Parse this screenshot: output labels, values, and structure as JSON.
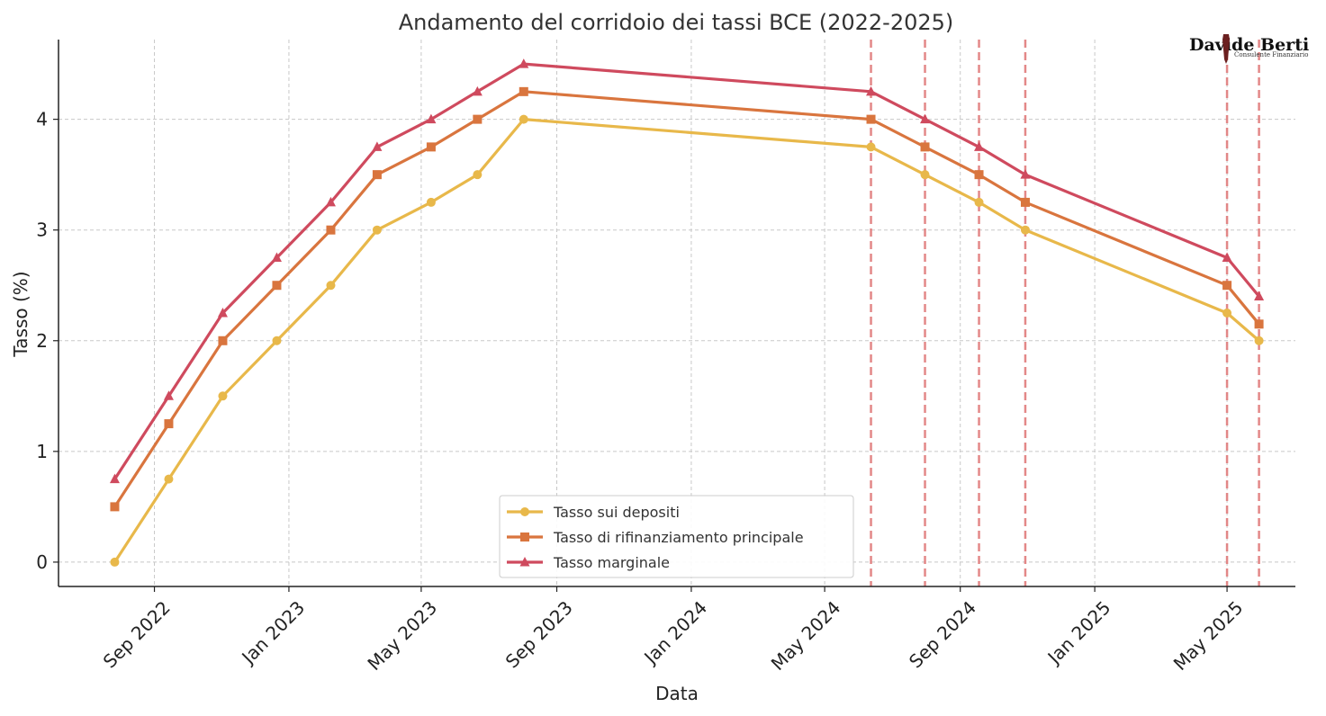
{
  "chart_data": {
    "type": "line",
    "title": "Andamento del corridoio dei tassi BCE (2022-2025)",
    "xlabel": "Data",
    "ylabel": "Tasso (%)",
    "xlim": [
      "2022-06-06",
      "2025-07-02"
    ],
    "ylim": [
      -0.22,
      4.72
    ],
    "x_ticks": [
      {
        "date": "2022-09-01",
        "label": "Sep 2022"
      },
      {
        "date": "2023-01-01",
        "label": "Jan 2023"
      },
      {
        "date": "2023-05-01",
        "label": "May 2023"
      },
      {
        "date": "2023-09-01",
        "label": "Sep 2023"
      },
      {
        "date": "2024-01-01",
        "label": "Jan 2024"
      },
      {
        "date": "2024-05-01",
        "label": "May 2024"
      },
      {
        "date": "2024-09-01",
        "label": "Sep 2024"
      },
      {
        "date": "2025-01-01",
        "label": "Jan 2025"
      },
      {
        "date": "2025-05-01",
        "label": "May 2025"
      }
    ],
    "y_ticks": [
      0,
      1,
      2,
      3,
      4
    ],
    "grid": true,
    "legend_position": "bottom-center",
    "x": [
      "2022-07-27",
      "2022-09-14",
      "2022-11-02",
      "2022-12-21",
      "2023-02-08",
      "2023-03-22",
      "2023-05-10",
      "2023-06-21",
      "2023-08-02",
      "2024-06-12",
      "2024-07-31",
      "2024-09-18",
      "2024-10-30",
      "2025-05-01",
      "2025-05-30"
    ],
    "series": [
      {
        "name": "Tasso sui depositi",
        "color": "#e8b84a",
        "marker": "circle",
        "values": [
          0,
          0.75,
          1.5,
          2,
          2.5,
          3,
          3.25,
          3.5,
          4,
          3.75,
          3.5,
          3.25,
          3,
          2.25,
          2
        ]
      },
      {
        "name": "Tasso di rifinanziamento principale",
        "color": "#d9753e",
        "marker": "square",
        "values": [
          0.5,
          1.25,
          2,
          2.5,
          3,
          3.5,
          3.75,
          4,
          4.25,
          4,
          3.75,
          3.5,
          3.25,
          2.5,
          2.15
        ]
      },
      {
        "name": "Tasso marginale",
        "color": "#cf4a5e",
        "marker": "triangle",
        "values": [
          0.75,
          1.5,
          2.25,
          2.75,
          3.25,
          3.75,
          4,
          4.25,
          4.5,
          4.25,
          4,
          3.75,
          3.5,
          2.75,
          2.4
        ]
      }
    ],
    "vertical_lines": {
      "color": "#e07b7b",
      "style": "dashed",
      "dates": [
        "2024-06-12",
        "2024-07-31",
        "2024-09-18",
        "2024-10-30",
        "2025-05-01",
        "2025-05-30"
      ]
    }
  },
  "logo": {
    "name": "Davide Berti",
    "subtitle": "Consulente Finanziario"
  }
}
